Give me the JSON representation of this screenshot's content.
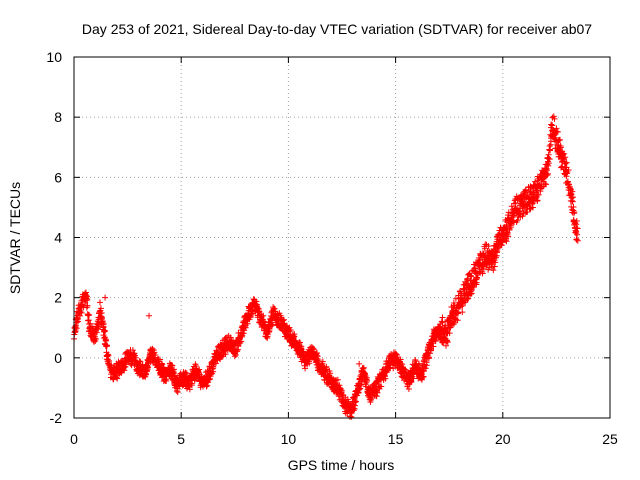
{
  "chart_data": {
    "type": "scatter",
    "title": "Day 253 of 2021, Sidereal Day-to-day VTEC variation (SDTVAR) for receiver ab07",
    "xlabel": "GPS time / hours",
    "ylabel": "SDTVAR / TECUs",
    "xlim": [
      0,
      25
    ],
    "ylim": [
      -2,
      10
    ],
    "xticks": [
      "0",
      "5",
      "10",
      "15",
      "20",
      "25"
    ],
    "yticks": [
      "-2",
      "0",
      "2",
      "4",
      "6",
      "8",
      "10"
    ],
    "grid": true,
    "marker": "+",
    "color": "#ff0000",
    "series": [
      {
        "name": "SDTVAR",
        "trace": [
          [
            0.0,
            0.7
          ],
          [
            0.1,
            1.2
          ],
          [
            0.2,
            1.5
          ],
          [
            0.35,
            1.8
          ],
          [
            0.5,
            2.1
          ],
          [
            0.6,
            1.9
          ],
          [
            0.7,
            1.0
          ],
          [
            0.8,
            0.8
          ],
          [
            1.0,
            0.7
          ],
          [
            1.2,
            1.6
          ],
          [
            1.3,
            1.2
          ],
          [
            1.45,
            0.6
          ],
          [
            1.55,
            0.1
          ],
          [
            1.7,
            -0.4
          ],
          [
            1.9,
            -0.6
          ],
          [
            2.1,
            -0.3
          ],
          [
            2.3,
            -0.2
          ],
          [
            2.5,
            0.0
          ],
          [
            2.8,
            0.0
          ],
          [
            3.0,
            -0.3
          ],
          [
            3.3,
            -0.5
          ],
          [
            3.6,
            0.1
          ],
          [
            3.9,
            -0.2
          ],
          [
            4.2,
            -0.6
          ],
          [
            4.5,
            -0.3
          ],
          [
            4.8,
            -0.9
          ],
          [
            5.1,
            -0.7
          ],
          [
            5.4,
            -0.8
          ],
          [
            5.7,
            -0.4
          ],
          [
            6.0,
            -0.9
          ],
          [
            6.3,
            -0.5
          ],
          [
            6.6,
            0.0
          ],
          [
            6.9,
            0.3
          ],
          [
            7.2,
            0.5
          ],
          [
            7.5,
            0.3
          ],
          [
            7.8,
            0.8
          ],
          [
            8.1,
            1.4
          ],
          [
            8.4,
            1.8
          ],
          [
            8.7,
            1.3
          ],
          [
            9.0,
            0.8
          ],
          [
            9.3,
            1.5
          ],
          [
            9.6,
            1.2
          ],
          [
            9.9,
            0.9
          ],
          [
            10.2,
            0.6
          ],
          [
            10.5,
            0.3
          ],
          [
            10.8,
            -0.1
          ],
          [
            11.1,
            0.2
          ],
          [
            11.4,
            -0.2
          ],
          [
            11.7,
            -0.5
          ],
          [
            12.0,
            -0.8
          ],
          [
            12.3,
            -1.0
          ],
          [
            12.6,
            -1.5
          ],
          [
            12.9,
            -1.8
          ],
          [
            13.2,
            -1.2
          ],
          [
            13.5,
            -0.4
          ],
          [
            13.8,
            -1.3
          ],
          [
            14.1,
            -1.0
          ],
          [
            14.4,
            -0.6
          ],
          [
            14.7,
            -0.2
          ],
          [
            15.0,
            0.0
          ],
          [
            15.3,
            -0.4
          ],
          [
            15.6,
            -0.8
          ],
          [
            15.9,
            -0.3
          ],
          [
            16.2,
            -0.6
          ],
          [
            16.5,
            0.2
          ],
          [
            16.8,
            0.7
          ],
          [
            17.1,
            1.0
          ],
          [
            17.4,
            0.8
          ],
          [
            17.7,
            1.5
          ],
          [
            18.0,
            1.8
          ],
          [
            18.3,
            2.3
          ],
          [
            18.6,
            2.6
          ],
          [
            18.9,
            3.0
          ],
          [
            19.2,
            3.4
          ],
          [
            19.5,
            3.2
          ],
          [
            19.8,
            3.8
          ],
          [
            20.1,
            4.2
          ],
          [
            20.4,
            4.6
          ],
          [
            20.7,
            5.0
          ],
          [
            21.0,
            5.2
          ],
          [
            21.3,
            5.3
          ],
          [
            21.6,
            5.6
          ],
          [
            21.9,
            6.0
          ],
          [
            22.1,
            6.3
          ],
          [
            22.3,
            7.8
          ],
          [
            22.5,
            7.2
          ],
          [
            22.7,
            6.8
          ],
          [
            22.9,
            6.4
          ],
          [
            23.1,
            5.8
          ],
          [
            23.3,
            4.8
          ],
          [
            23.5,
            4.0
          ]
        ]
      }
    ],
    "isolated_points": [
      [
        1.45,
        2.0
      ],
      [
        3.5,
        1.4
      ],
      [
        13.3,
        -0.2
      ]
    ]
  }
}
